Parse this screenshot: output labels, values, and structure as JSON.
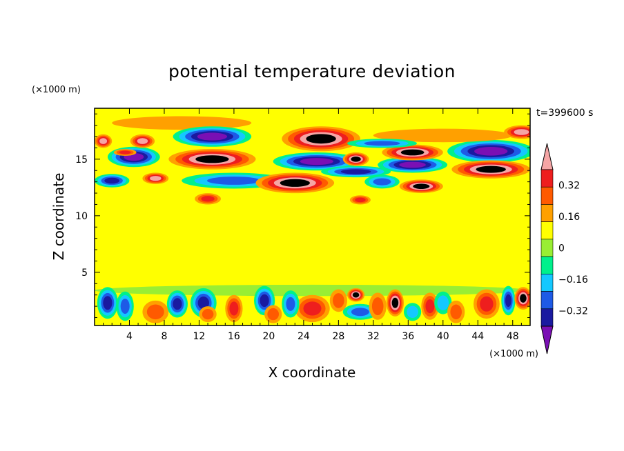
{
  "chart_data": {
    "type": "heatmap",
    "title": "potential temperature deviation",
    "xlabel": "X coordinate",
    "ylabel": "Z coordinate",
    "x_unit": "(×1000 m)",
    "y_unit": "(×1000 m)",
    "time_label": "t=399600 s",
    "xlim": [
      0,
      50
    ],
    "ylim": [
      0.3,
      19.5
    ],
    "x_ticks": [
      4,
      8,
      12,
      16,
      20,
      24,
      28,
      32,
      36,
      40,
      44,
      48
    ],
    "y_ticks": [
      5,
      10,
      15
    ],
    "colorbar": {
      "levels": [
        -0.4,
        -0.32,
        -0.24,
        -0.16,
        -0.08,
        0,
        0.08,
        0.16,
        0.24,
        0.32,
        0.4
      ],
      "labels": [
        "0.32",
        "0.16",
        "0",
        "−0.16",
        "−0.32"
      ],
      "label_values": [
        0.32,
        0.16,
        0,
        -0.16,
        -0.32
      ],
      "colors_low_to_high": [
        "#7a0fb4",
        "#1a1aa0",
        "#1e5ae6",
        "#14c8ff",
        "#00f08c",
        "#99ee33",
        "#ffff00",
        "#ffa000",
        "#ff5a00",
        "#ee1e1e",
        "#f5a5a5"
      ],
      "extend": "both"
    },
    "features": [
      {
        "x": 4.5,
        "y": 15.2,
        "rx": 3.0,
        "ry": 0.9,
        "value": -0.4
      },
      {
        "x": 1.0,
        "y": 16.6,
        "rx": 1.0,
        "ry": 0.6,
        "value": 0.34
      },
      {
        "x": 5.5,
        "y": 16.6,
        "rx": 1.4,
        "ry": 0.6,
        "value": 0.33
      },
      {
        "x": 3.5,
        "y": 15.6,
        "rx": 1.3,
        "ry": 0.3,
        "value": 0.3
      },
      {
        "x": 2.0,
        "y": 13.1,
        "rx": 2.0,
        "ry": 0.6,
        "value": -0.34
      },
      {
        "x": 13.5,
        "y": 17.0,
        "rx": 4.5,
        "ry": 0.9,
        "value": -0.45
      },
      {
        "x": 13.5,
        "y": 15.0,
        "rx": 5.0,
        "ry": 0.9,
        "value": 0.45
      },
      {
        "x": 16.0,
        "y": 13.1,
        "rx": 6.0,
        "ry": 0.7,
        "value": -0.26
      },
      {
        "x": 7.0,
        "y": 13.3,
        "rx": 1.5,
        "ry": 0.5,
        "value": 0.33
      },
      {
        "x": 26.0,
        "y": 16.8,
        "rx": 4.5,
        "ry": 1.1,
        "value": 0.45
      },
      {
        "x": 25.5,
        "y": 14.8,
        "rx": 5.0,
        "ry": 0.8,
        "value": -0.45
      },
      {
        "x": 23.0,
        "y": 12.9,
        "rx": 4.5,
        "ry": 0.9,
        "value": 0.42
      },
      {
        "x": 30.0,
        "y": 13.9,
        "rx": 4.0,
        "ry": 0.5,
        "value": -0.36
      },
      {
        "x": 30.0,
        "y": 15.0,
        "rx": 1.5,
        "ry": 0.6,
        "value": 0.42
      },
      {
        "x": 36.5,
        "y": 15.6,
        "rx": 3.5,
        "ry": 0.7,
        "value": 0.45
      },
      {
        "x": 36.5,
        "y": 14.5,
        "rx": 4.0,
        "ry": 0.7,
        "value": -0.45
      },
      {
        "x": 33.0,
        "y": 16.4,
        "rx": 4.0,
        "ry": 0.4,
        "value": -0.25
      },
      {
        "x": 37.5,
        "y": 12.6,
        "rx": 2.5,
        "ry": 0.6,
        "value": 0.42
      },
      {
        "x": 33.0,
        "y": 13.0,
        "rx": 2.0,
        "ry": 0.6,
        "value": -0.26
      },
      {
        "x": 45.5,
        "y": 15.7,
        "rx": 5.0,
        "ry": 1.0,
        "value": -0.45
      },
      {
        "x": 45.5,
        "y": 14.1,
        "rx": 4.5,
        "ry": 0.8,
        "value": 0.45
      },
      {
        "x": 49.0,
        "y": 17.4,
        "rx": 2.0,
        "ry": 0.6,
        "value": 0.33
      },
      {
        "x": 40.0,
        "y": 17.1,
        "rx": 8.0,
        "ry": 0.6,
        "value": 0.12
      },
      {
        "x": 10.0,
        "y": 18.2,
        "rx": 8.0,
        "ry": 0.6,
        "value": 0.1
      },
      {
        "x": 13.0,
        "y": 11.5,
        "rx": 1.5,
        "ry": 0.5,
        "value": 0.3
      },
      {
        "x": 30.5,
        "y": 11.4,
        "rx": 1.2,
        "ry": 0.4,
        "value": 0.3
      },
      {
        "x": 25.0,
        "y": 8.0,
        "rx": 20.0,
        "ry": 2.5,
        "value": 0.05
      },
      {
        "x": 10.0,
        "y": 10.5,
        "rx": 7.0,
        "ry": 1.2,
        "value": 0.04
      },
      {
        "x": 1.5,
        "y": 2.3,
        "rx": 1.2,
        "ry": 1.4,
        "value": -0.37
      },
      {
        "x": 3.5,
        "y": 2.0,
        "rx": 1.0,
        "ry": 1.3,
        "value": -0.27
      },
      {
        "x": 7.0,
        "y": 1.5,
        "rx": 1.5,
        "ry": 1.0,
        "value": 0.2
      },
      {
        "x": 9.5,
        "y": 2.2,
        "rx": 1.2,
        "ry": 1.2,
        "value": -0.35
      },
      {
        "x": 12.5,
        "y": 2.3,
        "rx": 1.5,
        "ry": 1.3,
        "value": -0.35
      },
      {
        "x": 13.0,
        "y": 1.3,
        "rx": 1.0,
        "ry": 0.7,
        "value": 0.2
      },
      {
        "x": 16.0,
        "y": 1.8,
        "rx": 1.0,
        "ry": 1.2,
        "value": 0.25
      },
      {
        "x": 19.5,
        "y": 2.5,
        "rx": 1.2,
        "ry": 1.3,
        "value": -0.37
      },
      {
        "x": 20.5,
        "y": 1.3,
        "rx": 1.0,
        "ry": 0.8,
        "value": 0.22
      },
      {
        "x": 22.5,
        "y": 2.2,
        "rx": 1.0,
        "ry": 1.2,
        "value": -0.28
      },
      {
        "x": 25.0,
        "y": 1.8,
        "rx": 2.0,
        "ry": 1.2,
        "value": 0.28
      },
      {
        "x": 28.0,
        "y": 2.5,
        "rx": 1.0,
        "ry": 1.0,
        "value": 0.2
      },
      {
        "x": 30.0,
        "y": 3.0,
        "rx": 1.0,
        "ry": 0.6,
        "value": 0.4
      },
      {
        "x": 30.5,
        "y": 1.5,
        "rx": 2.0,
        "ry": 0.7,
        "value": -0.25
      },
      {
        "x": 32.5,
        "y": 2.0,
        "rx": 1.0,
        "ry": 1.2,
        "value": 0.22
      },
      {
        "x": 34.5,
        "y": 2.3,
        "rx": 1.0,
        "ry": 1.2,
        "value": 0.42
      },
      {
        "x": 36.5,
        "y": 1.5,
        "rx": 1.0,
        "ry": 0.8,
        "value": -0.22
      },
      {
        "x": 38.5,
        "y": 2.0,
        "rx": 1.0,
        "ry": 1.2,
        "value": 0.25
      },
      {
        "x": 40.0,
        "y": 2.3,
        "rx": 1.0,
        "ry": 1.0,
        "value": -0.22
      },
      {
        "x": 41.5,
        "y": 1.5,
        "rx": 1.0,
        "ry": 1.0,
        "value": 0.2
      },
      {
        "x": 45.0,
        "y": 2.2,
        "rx": 1.5,
        "ry": 1.3,
        "value": 0.3
      },
      {
        "x": 47.5,
        "y": 2.5,
        "rx": 0.8,
        "ry": 1.3,
        "value": -0.37
      },
      {
        "x": 49.2,
        "y": 2.7,
        "rx": 1.0,
        "ry": 1.0,
        "value": 0.42
      },
      {
        "x": 25.0,
        "y": 3.4,
        "rx": 25.0,
        "ry": 0.5,
        "value": -0.06
      }
    ]
  }
}
